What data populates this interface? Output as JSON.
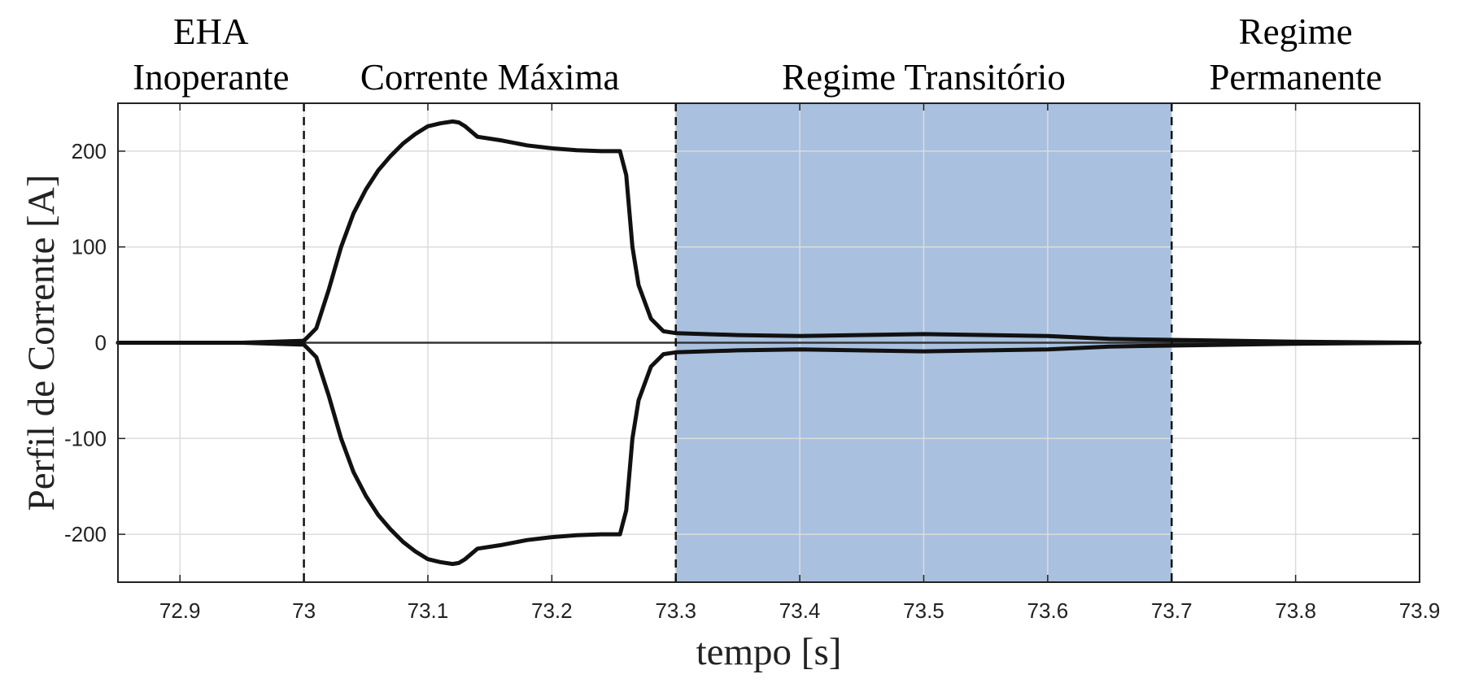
{
  "chart_data": {
    "type": "line",
    "xlabel": "tempo [s]",
    "ylabel": "Perfil de Corrente [A]",
    "xlim": [
      72.85,
      73.9
    ],
    "ylim": [
      -250,
      250
    ],
    "x_ticks": [
      "72.9",
      "73",
      "73.1",
      "73.2",
      "73.3",
      "73.4",
      "73.5",
      "73.6",
      "73.7",
      "73.8",
      "73.9"
    ],
    "y_ticks": [
      "200",
      "100",
      "0",
      "-100",
      "-200"
    ],
    "grid": true,
    "region_labels": [
      {
        "lines": [
          "EHA",
          "Inoperante"
        ],
        "x_center": 72.925
      },
      {
        "lines": [
          "Corrente Máxima"
        ],
        "x_center": 73.15
      },
      {
        "lines": [
          "Regime Transitório"
        ],
        "x_center": 73.5
      },
      {
        "lines": [
          "Regime",
          "Permanente"
        ],
        "x_center": 73.8
      }
    ],
    "boundaries": [
      73.0,
      73.3,
      73.7
    ],
    "shaded_region": {
      "x0": 73.3,
      "x1": 73.7,
      "color": "#a9c0df"
    },
    "line_color": "#111111",
    "series": [
      {
        "x": [
          72.85,
          72.95,
          73.0,
          73.01,
          73.02,
          73.03,
          73.04,
          73.05,
          73.06,
          73.07,
          73.08,
          73.09,
          73.1,
          73.11,
          73.12,
          73.125,
          73.13,
          73.14,
          73.16,
          73.18,
          73.2,
          73.22,
          73.24,
          73.255,
          73.26,
          73.265,
          73.27,
          73.28,
          73.29,
          73.3,
          73.35,
          73.4,
          73.5,
          73.6,
          73.65,
          73.7,
          73.8,
          73.9
        ],
        "y": [
          0,
          0,
          2,
          15,
          55,
          100,
          135,
          160,
          180,
          195,
          208,
          218,
          226,
          229,
          231,
          230,
          226,
          215,
          211,
          206,
          203,
          201,
          200,
          200,
          175,
          100,
          60,
          25,
          12,
          10,
          8,
          7,
          9,
          7,
          4,
          3,
          1,
          0
        ]
      },
      {
        "x": [
          72.85,
          72.95,
          73.0,
          73.01,
          73.02,
          73.03,
          73.04,
          73.05,
          73.06,
          73.07,
          73.08,
          73.09,
          73.1,
          73.11,
          73.12,
          73.125,
          73.13,
          73.14,
          73.16,
          73.18,
          73.2,
          73.22,
          73.24,
          73.255,
          73.26,
          73.265,
          73.27,
          73.28,
          73.29,
          73.3,
          73.35,
          73.4,
          73.5,
          73.6,
          73.65,
          73.7,
          73.8,
          73.9
        ],
        "y": [
          0,
          0,
          -2,
          -15,
          -55,
          -100,
          -135,
          -160,
          -180,
          -195,
          -208,
          -218,
          -226,
          -229,
          -231,
          -230,
          -226,
          -215,
          -211,
          -206,
          -203,
          -201,
          -200,
          -200,
          -175,
          -100,
          -60,
          -25,
          -12,
          -10,
          -8,
          -7,
          -9,
          -7,
          -4,
          -3,
          -1,
          0
        ]
      }
    ]
  }
}
